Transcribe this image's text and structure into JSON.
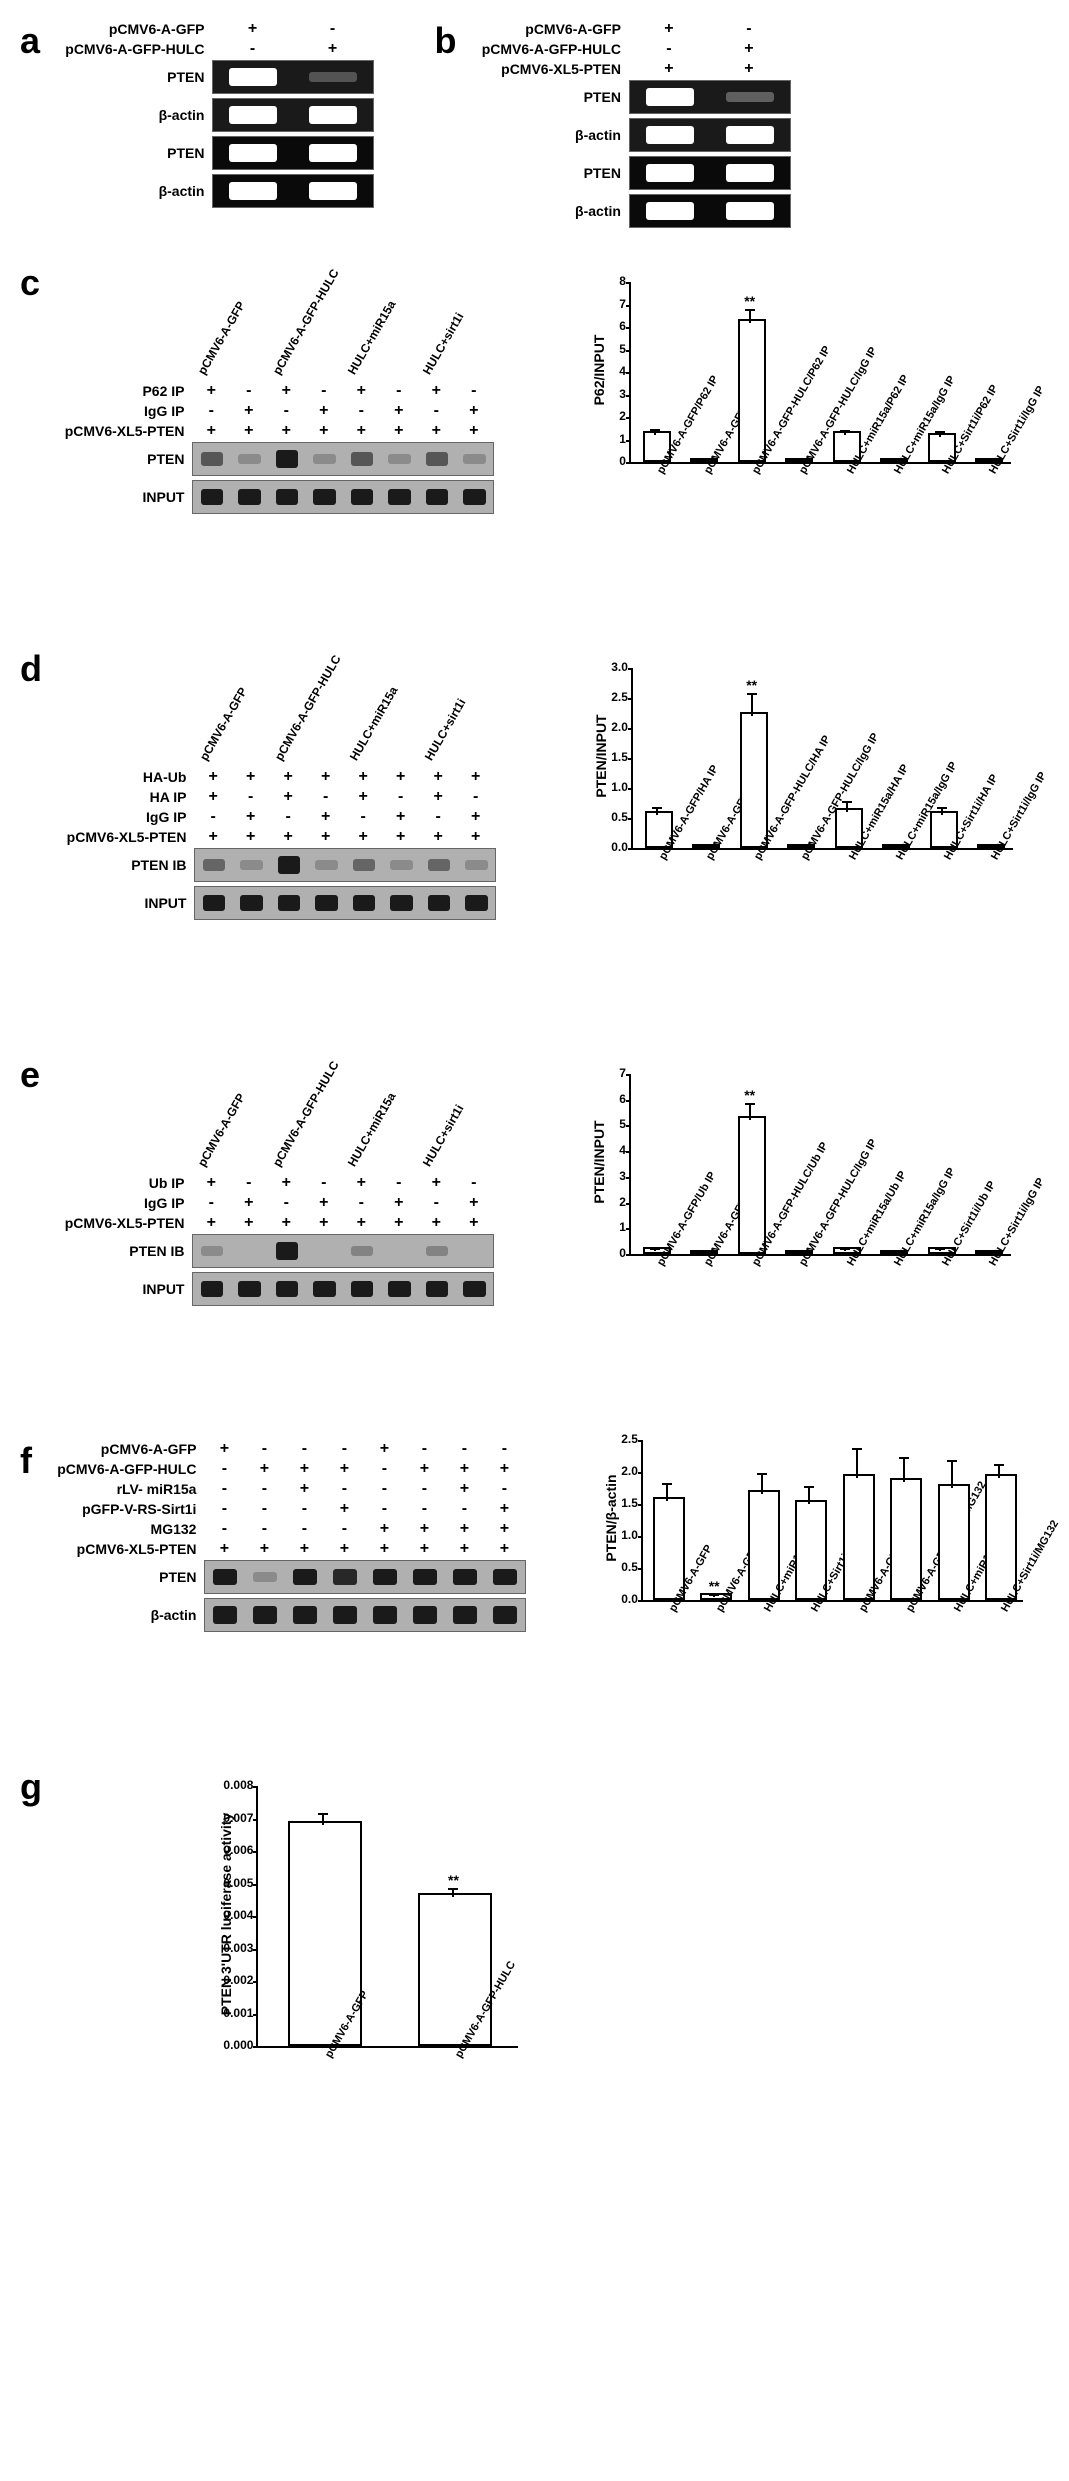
{
  "panels": {
    "a": {
      "label": "a",
      "conditions": [
        {
          "name": "pCMV6-A-GFP",
          "marks": [
            "+",
            "-"
          ]
        },
        {
          "name": "pCMV6-A-GFP-HULC",
          "marks": [
            "-",
            "+"
          ]
        }
      ],
      "blots": [
        {
          "label": "PTEN",
          "type": "western",
          "bands": [
            1.0,
            0.05
          ]
        },
        {
          "label": "β-actin",
          "type": "western",
          "bands": [
            1.0,
            1.0
          ]
        },
        {
          "label": "PTEN",
          "type": "gel",
          "bands": [
            1.0,
            0.9
          ]
        },
        {
          "label": "β-actin",
          "type": "gel",
          "bands": [
            1.0,
            1.0
          ]
        }
      ]
    },
    "b": {
      "label": "b",
      "conditions": [
        {
          "name": "pCMV6-A-GFP",
          "marks": [
            "+",
            "-"
          ]
        },
        {
          "name": "pCMV6-A-GFP-HULC",
          "marks": [
            "-",
            "+"
          ]
        },
        {
          "name": "pCMV6-XL5-PTEN",
          "marks": [
            "+",
            "+"
          ]
        }
      ],
      "blots": [
        {
          "label": "PTEN",
          "type": "western",
          "bands": [
            1.0,
            0.1
          ]
        },
        {
          "label": "β-actin",
          "type": "western",
          "bands": [
            1.0,
            1.0
          ]
        },
        {
          "label": "PTEN",
          "type": "gel",
          "bands": [
            1.0,
            0.95
          ]
        },
        {
          "label": "β-actin",
          "type": "gel",
          "bands": [
            1.0,
            1.0
          ]
        }
      ]
    },
    "c": {
      "label": "c",
      "diagLabels": [
        "pCMV6-A-GFP",
        "pCMV6-A-GFP-HULC",
        "HULC+miR15a",
        "HULC+sirt1i"
      ],
      "conditions": [
        {
          "name": "P62 IP",
          "marks": [
            "+",
            "-",
            "+",
            "-",
            "+",
            "-",
            "+",
            "-"
          ]
        },
        {
          "name": "IgG IP",
          "marks": [
            "-",
            "+",
            "-",
            "+",
            "-",
            "+",
            "-",
            "+"
          ]
        },
        {
          "name": "pCMV6-XL5-PTEN",
          "marks": [
            "+",
            "+",
            "+",
            "+",
            "+",
            "+",
            "+",
            "+"
          ]
        }
      ],
      "blots": [
        {
          "label": "PTEN",
          "type": "gray",
          "bands": [
            0.4,
            0.05,
            1.0,
            0.05,
            0.4,
            0.05,
            0.4,
            0.05
          ]
        },
        {
          "label": "INPUT",
          "type": "gray",
          "bands": [
            0.8,
            0.8,
            0.8,
            0.8,
            0.8,
            0.8,
            0.8,
            0.8
          ]
        }
      ],
      "chart": {
        "ylabel": "P62/INPUT",
        "ymax": 8,
        "ytick_step": 1,
        "bars": [
          {
            "label": "pCMV6-A-GFP/P62 IP",
            "value": 1.2,
            "error": 0.2
          },
          {
            "label": "pCMV6-A-GFP/IgG IP",
            "value": 0,
            "error": 0
          },
          {
            "label": "pCMV6-A-GFP-HULC/P62 IP",
            "value": 6.2,
            "error": 0.5,
            "sig": "**"
          },
          {
            "label": "pCMV6-A-GFP-HULC/IgG IP",
            "value": 0,
            "error": 0
          },
          {
            "label": "HULC+miR15a/P62 IP",
            "value": 1.2,
            "error": 0.15
          },
          {
            "label": "HULC+miR15a/IgG IP",
            "value": 0,
            "error": 0
          },
          {
            "label": "HULC+Sirt1i/P62 IP",
            "value": 1.1,
            "error": 0.2
          },
          {
            "label": "HULC+Sirt1i/IgG IP",
            "value": 0,
            "error": 0
          }
        ]
      }
    },
    "d": {
      "label": "d",
      "diagLabels": [
        "pCMV6-A-GFP",
        "pCMV6-A-GFP-HULC",
        "HULC+miR15a",
        "HULC+sirt1i"
      ],
      "conditions": [
        {
          "name": "HA-Ub",
          "marks": [
            "+",
            "+",
            "+",
            "+",
            "+",
            "+",
            "+",
            "+"
          ]
        },
        {
          "name": "HA IP",
          "marks": [
            "+",
            "-",
            "+",
            "-",
            "+",
            "-",
            "+",
            "-"
          ]
        },
        {
          "name": "IgG IP",
          "marks": [
            "-",
            "+",
            "-",
            "+",
            "-",
            "+",
            "-",
            "+"
          ]
        },
        {
          "name": "pCMV6-XL5-PTEN",
          "marks": [
            "+",
            "+",
            "+",
            "+",
            "+",
            "+",
            "+",
            "+"
          ]
        }
      ],
      "blots": [
        {
          "label": "PTEN IB",
          "type": "gray",
          "bands": [
            0.3,
            0.05,
            1.0,
            0.05,
            0.3,
            0.05,
            0.3,
            0.05
          ]
        },
        {
          "label": "INPUT",
          "type": "gray",
          "bands": [
            0.8,
            0.8,
            0.8,
            0.8,
            0.8,
            0.8,
            0.8,
            0.8
          ]
        }
      ],
      "chart": {
        "ylabel": "PTEN/INPUT",
        "ymax": 3,
        "ytick_step": 0.5,
        "bars": [
          {
            "label": "pCMV6-A-GFP/HA IP",
            "value": 0.55,
            "error": 0.1
          },
          {
            "label": "pCMV6-A-GFP/IgG IP",
            "value": 0,
            "error": 0
          },
          {
            "label": "pCMV6-A-GFP-HULC/HA IP",
            "value": 2.2,
            "error": 0.35,
            "sig": "**"
          },
          {
            "label": "pCMV6-A-GFP-HULC/IgG IP",
            "value": 0,
            "error": 0
          },
          {
            "label": "HULC+miR15a/HA IP",
            "value": 0.6,
            "error": 0.15
          },
          {
            "label": "HULC+miR15a/IgG IP",
            "value": 0,
            "error": 0
          },
          {
            "label": "HULC+Sirt1i/HA IP",
            "value": 0.55,
            "error": 0.1
          },
          {
            "label": "HULC+Sirt1i/IgG IP",
            "value": 0,
            "error": 0
          }
        ]
      }
    },
    "e": {
      "label": "e",
      "diagLabels": [
        "pCMV6-A-GFP",
        "pCMV6-A-GFP-HULC",
        "HULC+miR15a",
        "HULC+sirt1i"
      ],
      "conditions": [
        {
          "name": "Ub IP",
          "marks": [
            "+",
            "-",
            "+",
            "-",
            "+",
            "-",
            "+",
            "-"
          ]
        },
        {
          "name": "IgG IP",
          "marks": [
            "-",
            "+",
            "-",
            "+",
            "-",
            "+",
            "-",
            "+"
          ]
        },
        {
          "name": "pCMV6-XL5-PTEN",
          "marks": [
            "+",
            "+",
            "+",
            "+",
            "+",
            "+",
            "+",
            "+"
          ]
        }
      ],
      "blots": [
        {
          "label": "PTEN IB",
          "type": "gray",
          "bands": [
            0.05,
            0.02,
            1.0,
            0.02,
            0.1,
            0.02,
            0.1,
            0.02
          ]
        },
        {
          "label": "INPUT",
          "type": "gray",
          "bands": [
            0.8,
            0.8,
            0.8,
            0.8,
            0.8,
            0.8,
            0.8,
            0.8
          ]
        }
      ],
      "chart": {
        "ylabel": "PTEN/INPUT",
        "ymax": 7,
        "ytick_step": 1,
        "bars": [
          {
            "label": "pCMV6-A-GFP/Ub IP",
            "value": 0.1,
            "error": 0.05
          },
          {
            "label": "pCMV6-A-GFP/IgG IP",
            "value": 0,
            "error": 0
          },
          {
            "label": "pCMV6-A-GFP-HULC/Ub IP",
            "value": 5.2,
            "error": 0.6,
            "sig": "**"
          },
          {
            "label": "pCMV6-A-GFP-HULC/IgG IP",
            "value": 0,
            "error": 0
          },
          {
            "label": "HULC+miR15a/Ub IP",
            "value": 0.1,
            "error": 0.05
          },
          {
            "label": "HULC+miR15a/IgG IP",
            "value": 0,
            "error": 0
          },
          {
            "label": "HULC+Sirt1i/Ub IP",
            "value": 0.1,
            "error": 0.05
          },
          {
            "label": "HULC+Sirt1i/IgG IP",
            "value": 0,
            "error": 0
          }
        ]
      }
    },
    "f": {
      "label": "f",
      "conditions": [
        {
          "name": "pCMV6-A-GFP",
          "marks": [
            "+",
            "-",
            "-",
            "-",
            "+",
            "-",
            "-",
            "-"
          ]
        },
        {
          "name": "pCMV6-A-GFP-HULC",
          "marks": [
            "-",
            "+",
            "+",
            "+",
            "-",
            "+",
            "+",
            "+"
          ]
        },
        {
          "name": "rLV- miR15a",
          "marks": [
            "-",
            "-",
            "+",
            "-",
            "-",
            "-",
            "+",
            "-"
          ]
        },
        {
          "name": "pGFP-V-RS-Sirt1i",
          "marks": [
            "-",
            "-",
            "-",
            "+",
            "-",
            "-",
            "-",
            "+"
          ]
        },
        {
          "name": "MG132",
          "marks": [
            "-",
            "-",
            "-",
            "-",
            "+",
            "+",
            "+",
            "+"
          ]
        },
        {
          "name": "pCMV6-XL5-PTEN",
          "marks": [
            "+",
            "+",
            "+",
            "+",
            "+",
            "+",
            "+",
            "+"
          ]
        }
      ],
      "blots": [
        {
          "label": "PTEN",
          "type": "gray",
          "bands": [
            0.8,
            0.05,
            0.8,
            0.7,
            0.85,
            0.85,
            0.8,
            0.8
          ]
        },
        {
          "label": "β-actin",
          "type": "gray",
          "bands": [
            0.9,
            0.9,
            0.9,
            0.9,
            0.9,
            0.9,
            0.9,
            0.9
          ]
        }
      ],
      "chart": {
        "ylabel": "PTEN/β-actin",
        "ymax": 2.5,
        "ytick_step": 0.5,
        "bars": [
          {
            "label": "pCMV6-A-GFP",
            "value": 1.55,
            "error": 0.25
          },
          {
            "label": "pCMV6-A-GFP-HULC",
            "value": 0.05,
            "error": 0.02,
            "sig": "**"
          },
          {
            "label": "HULC+miR15a",
            "value": 1.65,
            "error": 0.3
          },
          {
            "label": "HULC+Sirt1i",
            "value": 1.5,
            "error": 0.25
          },
          {
            "label": "pCMV6-A-GFP/MG132",
            "value": 1.9,
            "error": 0.45
          },
          {
            "label": "pCMV6-A-GFP-HULC/MG132",
            "value": 1.85,
            "error": 0.35
          },
          {
            "label": "HULC+miR15a/MG132",
            "value": 1.75,
            "error": 0.4
          },
          {
            "label": "HULC+Sirt1i/MG132",
            "value": 1.9,
            "error": 0.2
          }
        ]
      }
    },
    "g": {
      "label": "g",
      "chart": {
        "ylabel": "PTEN 3'UTR luciferase activity",
        "ymax": 0.008,
        "ytick_step": 0.001,
        "bars": [
          {
            "label": "pCMV6-A-GFP",
            "value": 0.0068,
            "error": 0.0003
          },
          {
            "label": "pCMV6-A-GFP-HULC",
            "value": 0.0046,
            "error": 0.0002,
            "sig": "**"
          }
        ]
      }
    }
  }
}
